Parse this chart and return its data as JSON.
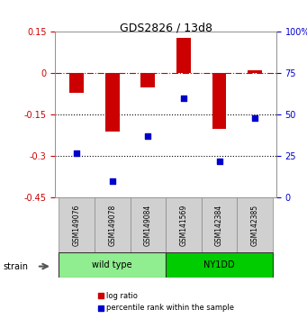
{
  "title": "GDS2826 / 13d8",
  "samples": [
    "GSM149076",
    "GSM149078",
    "GSM149084",
    "GSM141569",
    "GSM142384",
    "GSM142385"
  ],
  "log_ratio": [
    -0.07,
    -0.21,
    -0.05,
    0.13,
    -0.2,
    0.01
  ],
  "percentile_rank": [
    27,
    10,
    37,
    60,
    22,
    48
  ],
  "ylim_left": [
    -0.45,
    0.15
  ],
  "ylim_right": [
    0,
    100
  ],
  "yticks_left": [
    0.15,
    0.0,
    -0.15,
    -0.3,
    -0.45
  ],
  "ytick_labels_left": [
    "0.15",
    "0",
    "-0.15",
    "-0.3",
    "-0.45"
  ],
  "yticks_right": [
    100,
    75,
    50,
    25,
    0
  ],
  "groups": [
    {
      "label": "wild type",
      "indices": [
        0,
        1,
        2
      ],
      "color": "#90EE90"
    },
    {
      "label": "NY1DD",
      "indices": [
        3,
        4,
        5
      ],
      "color": "#00CC00"
    }
  ],
  "bar_color": "#CC0000",
  "scatter_color": "#0000CC",
  "ref_line_color": "#CC0000",
  "dotted_line_color": "#000000",
  "bar_width": 0.4,
  "legend_items": [
    {
      "label": "log ratio",
      "color": "#CC0000"
    },
    {
      "label": "percentile rank within the sample",
      "color": "#0000CC"
    }
  ],
  "group_row_color_light": "#C0C0C0",
  "strain_label": "strain"
}
